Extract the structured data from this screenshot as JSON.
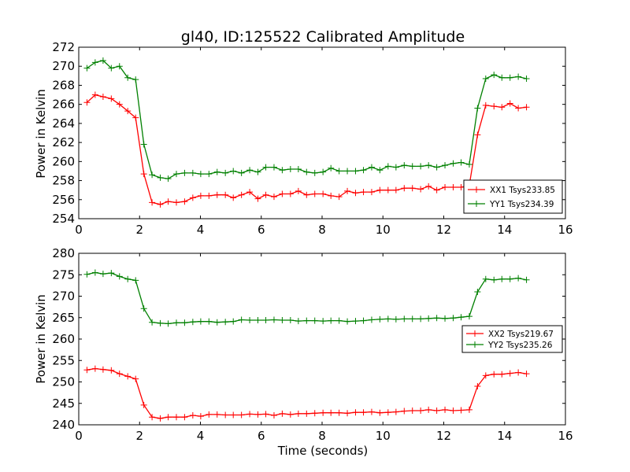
{
  "chart_data": [
    {
      "type": "line",
      "title": "gl40, ID:125522 Calibrated Amplitude",
      "xlabel": "",
      "ylabel": "Power in Kelvin",
      "xlim": [
        0,
        16
      ],
      "ylim": [
        254,
        272
      ],
      "xticks": [
        0,
        2,
        4,
        6,
        8,
        10,
        12,
        14,
        16
      ],
      "yticks": [
        254,
        256,
        258,
        260,
        262,
        264,
        266,
        268,
        270,
        272
      ],
      "legend_position": "lower-right",
      "x": [
        0.27,
        0.54,
        0.8,
        1.07,
        1.34,
        1.61,
        1.87,
        2.14,
        2.41,
        2.68,
        2.94,
        3.21,
        3.48,
        3.75,
        4.01,
        4.28,
        4.55,
        4.82,
        5.08,
        5.35,
        5.62,
        5.89,
        6.15,
        6.42,
        6.69,
        6.96,
        7.22,
        7.49,
        7.76,
        8.03,
        8.29,
        8.56,
        8.83,
        9.1,
        9.36,
        9.63,
        9.9,
        10.17,
        10.43,
        10.7,
        10.97,
        11.24,
        11.5,
        11.77,
        12.04,
        12.31,
        12.57,
        12.84,
        13.11,
        13.38,
        13.65,
        13.91,
        14.18,
        14.45,
        14.72
      ],
      "series": [
        {
          "name": "XX1 Tsys233.85",
          "color": "#ff0000",
          "values": [
            266.2,
            267.0,
            266.8,
            266.6,
            266.0,
            265.3,
            264.6,
            258.7,
            255.7,
            255.5,
            255.8,
            255.7,
            255.8,
            256.2,
            256.4,
            256.4,
            256.5,
            256.5,
            256.2,
            256.5,
            256.8,
            256.1,
            256.5,
            256.3,
            256.6,
            256.6,
            256.9,
            256.5,
            256.6,
            256.6,
            256.4,
            256.3,
            256.9,
            256.7,
            256.8,
            256.8,
            257.0,
            257.0,
            257.0,
            257.2,
            257.2,
            257.1,
            257.4,
            257.0,
            257.3,
            257.3,
            257.3,
            257.5,
            262.8,
            265.9,
            265.8,
            265.7,
            266.1,
            265.6,
            265.7
          ]
        },
        {
          "name": "YY1 Tsys234.39",
          "color": "#008000",
          "values": [
            269.8,
            270.4,
            270.6,
            269.8,
            270.0,
            268.8,
            268.6,
            261.8,
            258.6,
            258.3,
            258.2,
            258.7,
            258.8,
            258.8,
            258.7,
            258.7,
            258.9,
            258.8,
            259.0,
            258.8,
            259.1,
            258.9,
            259.4,
            259.4,
            259.1,
            259.2,
            259.2,
            258.9,
            258.8,
            258.9,
            259.3,
            259.0,
            259.0,
            259.0,
            259.1,
            259.4,
            259.1,
            259.5,
            259.4,
            259.6,
            259.5,
            259.5,
            259.6,
            259.4,
            259.6,
            259.8,
            259.9,
            259.7,
            265.6,
            268.7,
            269.1,
            268.8,
            268.8,
            268.9,
            268.7
          ]
        }
      ]
    },
    {
      "type": "line",
      "title": "",
      "xlabel": "Time (seconds)",
      "ylabel": "Power in Kelvin",
      "xlim": [
        0,
        16
      ],
      "ylim": [
        240,
        280
      ],
      "xticks": [
        0,
        2,
        4,
        6,
        8,
        10,
        12,
        14,
        16
      ],
      "yticks": [
        240,
        245,
        250,
        255,
        260,
        265,
        270,
        275,
        280
      ],
      "legend_position": "center-right",
      "x": [
        0.27,
        0.54,
        0.8,
        1.07,
        1.34,
        1.61,
        1.87,
        2.14,
        2.41,
        2.68,
        2.94,
        3.21,
        3.48,
        3.75,
        4.01,
        4.28,
        4.55,
        4.82,
        5.08,
        5.35,
        5.62,
        5.89,
        6.15,
        6.42,
        6.69,
        6.96,
        7.22,
        7.49,
        7.76,
        8.03,
        8.29,
        8.56,
        8.83,
        9.1,
        9.36,
        9.63,
        9.9,
        10.17,
        10.43,
        10.7,
        10.97,
        11.24,
        11.5,
        11.77,
        12.04,
        12.31,
        12.57,
        12.84,
        13.11,
        13.38,
        13.65,
        13.91,
        14.18,
        14.45,
        14.72
      ],
      "series": [
        {
          "name": "XX2 Tsys219.67",
          "color": "#ff0000",
          "values": [
            252.8,
            253.1,
            252.9,
            252.7,
            251.9,
            251.3,
            250.7,
            244.6,
            241.8,
            241.5,
            241.8,
            241.8,
            241.8,
            242.2,
            242.0,
            242.4,
            242.4,
            242.3,
            242.3,
            242.3,
            242.5,
            242.4,
            242.5,
            242.2,
            242.6,
            242.4,
            242.6,
            242.6,
            242.7,
            242.8,
            242.8,
            242.8,
            242.7,
            242.9,
            242.9,
            243.0,
            242.8,
            242.9,
            243.0,
            243.2,
            243.3,
            243.3,
            243.5,
            243.3,
            243.5,
            243.3,
            243.4,
            243.5,
            249.0,
            251.5,
            251.8,
            251.8,
            252.0,
            252.2,
            251.9
          ]
        },
        {
          "name": "YY2 Tsys235.26",
          "color": "#008000",
          "values": [
            275.1,
            275.5,
            275.2,
            275.4,
            274.6,
            274.0,
            273.7,
            267.1,
            263.9,
            263.7,
            263.6,
            263.8,
            263.8,
            264.0,
            264.1,
            264.1,
            263.9,
            264.0,
            264.1,
            264.5,
            264.4,
            264.4,
            264.4,
            264.5,
            264.4,
            264.4,
            264.2,
            264.3,
            264.3,
            264.2,
            264.3,
            264.3,
            264.1,
            264.2,
            264.3,
            264.5,
            264.6,
            264.7,
            264.6,
            264.7,
            264.7,
            264.7,
            264.8,
            264.9,
            264.8,
            264.9,
            265.1,
            265.3,
            271.0,
            274.0,
            273.8,
            274.0,
            274.0,
            274.2,
            273.8
          ]
        }
      ]
    }
  ]
}
